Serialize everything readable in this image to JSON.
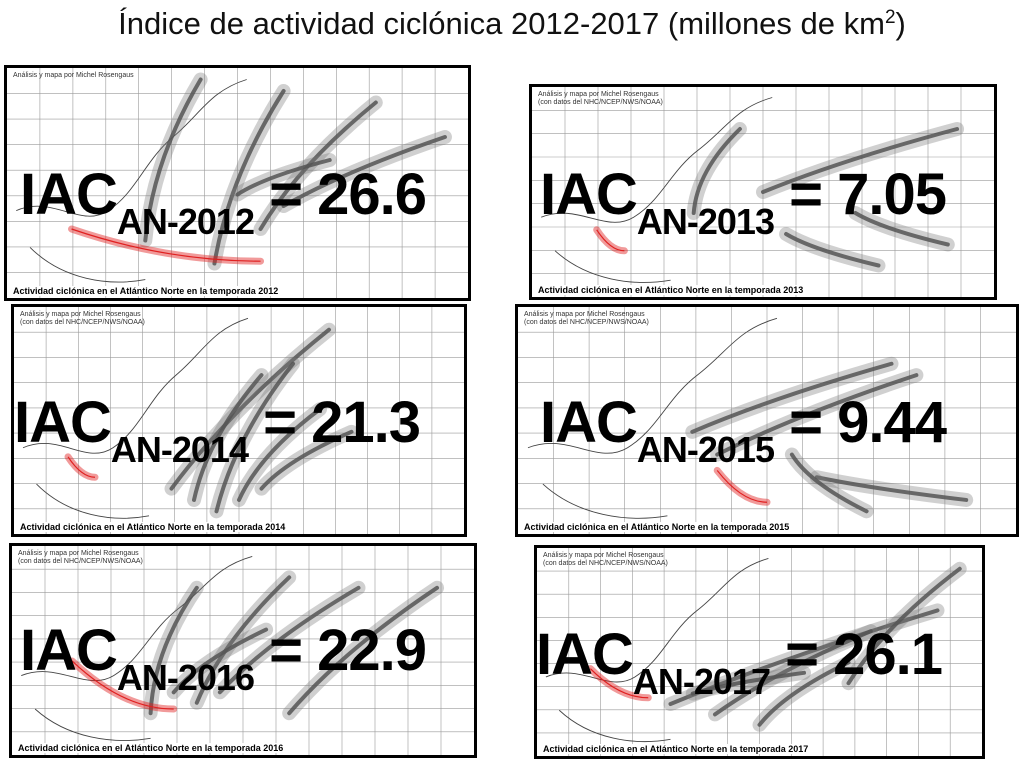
{
  "title": {
    "text": "Índice de actividad ciclónica 2012-2017 (millones de km",
    "sup": "2",
    "close": ")"
  },
  "panels": [
    {
      "credit_line1": "Análisis y mapa por Michel Rosengaus",
      "credit_line2": "",
      "caption": "Actividad ciclónica en el Atlántico Norte en la temporada 2012",
      "iac": "IAC",
      "sub": "AN-2012",
      "value": " = 26.6"
    },
    {
      "credit_line1": "Análisis y mapa por Michel Rosengaus",
      "credit_line2": "(con datos del NHC/NCEP/NWS/NOAA)",
      "caption": "Actividad ciclónica en el Atlántico Norte en la temporada 2013",
      "iac": "IAC",
      "sub": "AN-2013",
      "value": " = 7.05"
    },
    {
      "credit_line1": "Análisis y mapa por Michel Rosengaus",
      "credit_line2": "(con datos del NHC/NCEP/NWS/NOAA)",
      "caption": "Actividad ciclónica en el Atlántico Norte en la temporada 2014",
      "iac": "IAC",
      "sub": "AN-2014",
      "value": " = 21.3"
    },
    {
      "credit_line1": "Análisis y mapa por Michel Rosengaus",
      "credit_line2": "(con datos del NHC/NCEP/NWS/NOAA)",
      "caption": "Actividad ciclónica en el Atlántico Norte en la temporada 2015",
      "iac": "IAC",
      "sub": "AN-2015",
      "value": " = 9.44"
    },
    {
      "credit_line1": "Análisis y mapa por Michel Rosengaus",
      "credit_line2": "(con datos del NHC/NCEP/NWS/NOAA)",
      "caption": "Actividad ciclónica en el Atlántico Norte en la temporada 2016",
      "iac": "IAC",
      "sub": "AN-2016",
      "value": " = 22.9"
    },
    {
      "credit_line1": "Análisis y mapa por Michel Rosengaus",
      "credit_line2": "(con datos del NHC/NCEP/NWS/NOAA)",
      "caption": "Actividad ciclónica en el Atlántico Norte en la temporada 2017",
      "iac": "IAC",
      "sub": "AN-2017",
      "value": " = 26.1"
    }
  ],
  "colors": {
    "mexico_track": "#e02020",
    "track_fill": "#d8d8d8",
    "track_core": "#555555",
    "grid": "#9a9a9a"
  }
}
